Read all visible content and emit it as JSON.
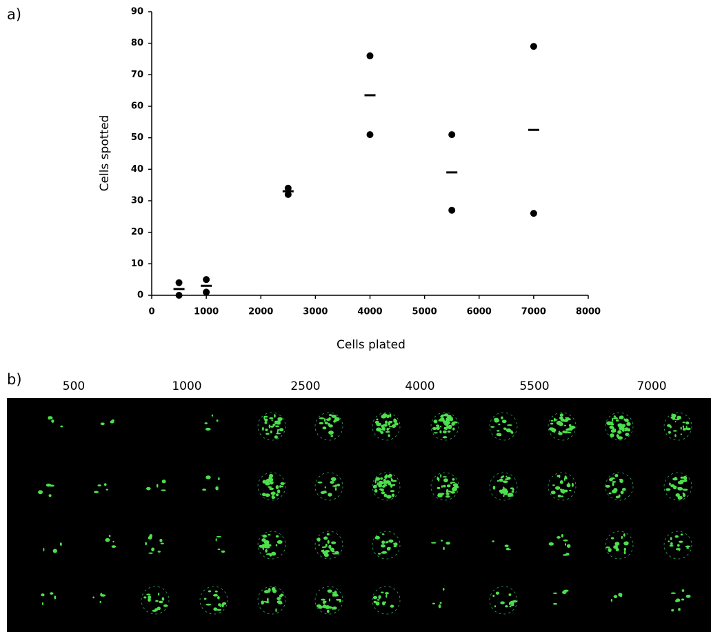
{
  "panels": {
    "a": "a)",
    "b": "b)"
  },
  "image_columns": [
    "500",
    "1000",
    "2500",
    "4000",
    "5500",
    "7000"
  ],
  "chart_data": {
    "type": "scatter",
    "x_label": "Cells plated",
    "y_label": "Cells spotted",
    "series": [
      {
        "marker": "circle",
        "color": "#000000",
        "x": [
          500,
          500,
          1000,
          1000,
          2500,
          2500,
          4000,
          4000,
          5500,
          5500,
          7000,
          7000
        ],
        "values": [
          4,
          0,
          5,
          1,
          34,
          32,
          76,
          51,
          51,
          27,
          79,
          26
        ]
      },
      {
        "marker": "dash",
        "color": "#000000",
        "x": [
          500,
          1000,
          2500,
          4000,
          5500,
          7000
        ],
        "values": [
          2,
          3,
          33,
          63.5,
          39,
          52.5
        ]
      }
    ],
    "xlim": [
      0,
      8000
    ],
    "xticks": [
      0,
      1000,
      2000,
      3000,
      4000,
      5000,
      6000,
      7000,
      8000
    ],
    "ylim": [
      0,
      90
    ],
    "yticks": [
      0,
      10,
      20,
      30,
      40,
      50,
      60,
      70,
      80,
      90
    ],
    "grid": false
  }
}
